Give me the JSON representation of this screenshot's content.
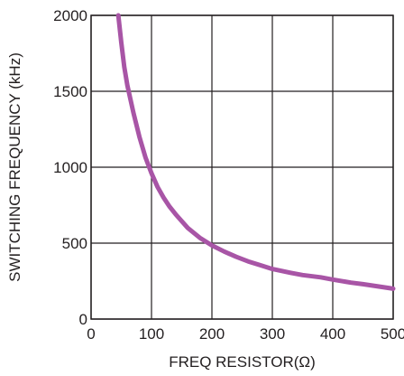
{
  "chart_data": {
    "type": "line",
    "title": "",
    "xlabel": "FREQ RESISTOR(Ω)",
    "ylabel": "SWITCHING FREQUENCY (kHz)",
    "xlim": [
      0,
      500
    ],
    "ylim": [
      0,
      2000
    ],
    "x_ticks": [
      "0",
      "100",
      "200",
      "300",
      "400",
      "500"
    ],
    "y_ticks": [
      "0",
      "500",
      "1000",
      "1500",
      "2000"
    ],
    "grid": true,
    "series": [
      {
        "color": "#a855a6",
        "x": [
          45,
          50,
          55,
          60,
          70,
          80,
          90,
          100,
          110,
          120,
          130,
          140,
          160,
          180,
          200,
          220,
          240,
          260,
          280,
          300,
          330,
          350,
          380,
          400,
          430,
          450,
          475,
          500
        ],
        "y": [
          2000,
          1820,
          1660,
          1540,
          1360,
          1200,
          1065,
          960,
          870,
          800,
          740,
          690,
          600,
          535,
          485,
          445,
          410,
          380,
          355,
          330,
          305,
          290,
          275,
          260,
          240,
          230,
          215,
          200
        ]
      }
    ]
  }
}
